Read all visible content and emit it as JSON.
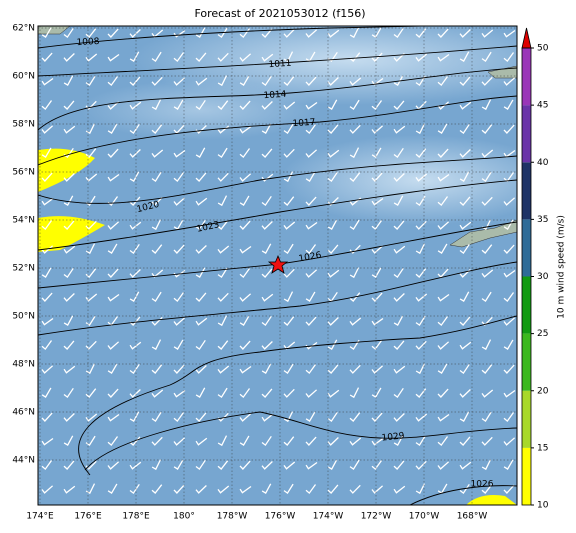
{
  "title": "Forecast of 2021053012 (f156)",
  "lat_labels": [
    "62°N",
    "60°N",
    "58°N",
    "56°N",
    "54°N",
    "52°N",
    "50°N",
    "48°N",
    "46°N",
    "44°N"
  ],
  "lon_labels": [
    "174°E",
    "176°E",
    "178°E",
    "180°",
    "178°W",
    "176°W",
    "174°W",
    "172°W",
    "170°W",
    "168°W"
  ],
  "contour_labels": [
    "1008",
    "1011",
    "1014",
    "1017",
    "1020",
    "1023",
    "1026",
    "1029",
    "1026"
  ],
  "colorbar": {
    "label": "10 m wind speed (m/s)",
    "lim": [
      10,
      50
    ],
    "ticks": [
      10,
      15,
      20,
      25,
      30,
      35,
      40,
      45,
      50
    ],
    "colors": [
      "#ffff00",
      "#a8d82a",
      "#3cb81e",
      "#129a12",
      "#2e6c98",
      "#1e3366",
      "#6a34a8",
      "#9a36b8"
    ],
    "extend_color": "#dd0000"
  }
}
